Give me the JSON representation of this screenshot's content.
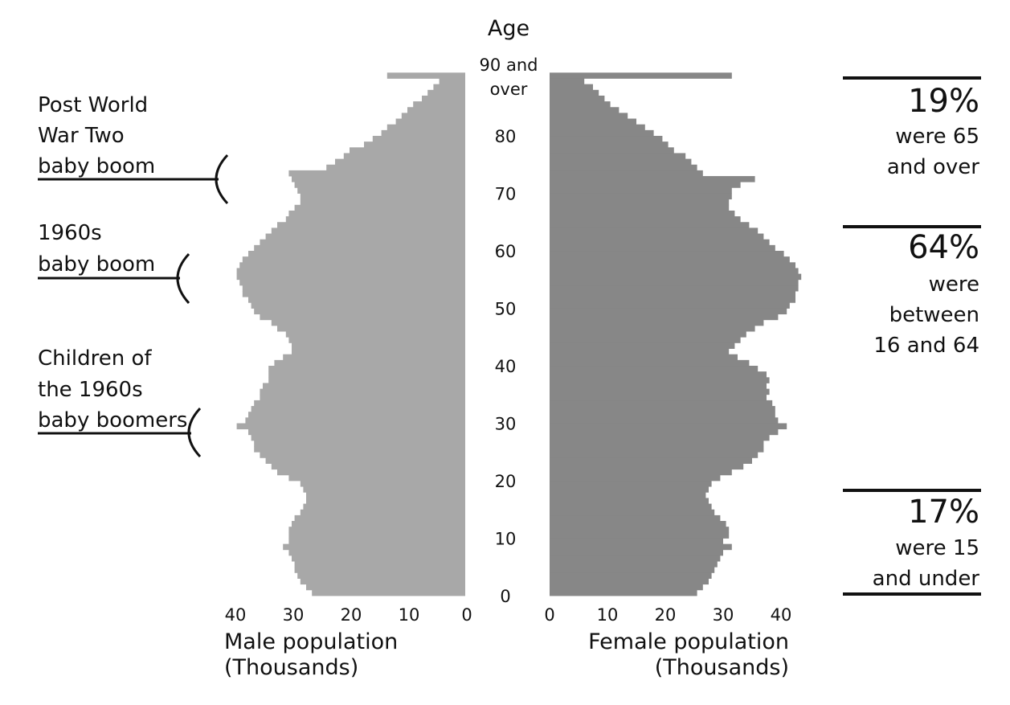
{
  "chart_data": {
    "type": "bar",
    "subtype": "population-pyramid",
    "title": "",
    "age_axis_title": "Age",
    "age_tick_labels": [
      "0",
      "10",
      "20",
      "30",
      "40",
      "50",
      "60",
      "70",
      "80"
    ],
    "top_age_label": [
      "90 and",
      "over"
    ],
    "x_tick_labels": [
      "40",
      "30",
      "20",
      "10",
      "0"
    ],
    "xlim": [
      0,
      40
    ],
    "male_label": [
      "Male population",
      "(Thousands)"
    ],
    "female_label": [
      "Female population",
      "(Thousands)"
    ],
    "ages": [
      0,
      1,
      2,
      3,
      4,
      5,
      6,
      7,
      8,
      9,
      10,
      11,
      12,
      13,
      14,
      15,
      16,
      17,
      18,
      19,
      20,
      21,
      22,
      23,
      24,
      25,
      26,
      27,
      28,
      29,
      30,
      31,
      32,
      33,
      34,
      35,
      36,
      37,
      38,
      39,
      40,
      41,
      42,
      43,
      44,
      45,
      46,
      47,
      48,
      49,
      50,
      51,
      52,
      53,
      54,
      55,
      56,
      57,
      58,
      59,
      60,
      61,
      62,
      63,
      64,
      65,
      66,
      67,
      68,
      69,
      70,
      71,
      72,
      73,
      74,
      75,
      76,
      77,
      78,
      79,
      80,
      81,
      82,
      83,
      84,
      85,
      86,
      87,
      88,
      89,
      "90 and over"
    ],
    "series": [
      {
        "name": "Male population",
        "color": "#a8a8a8",
        "values": [
          26.5,
          27.5,
          28.5,
          29.0,
          29.5,
          29.5,
          30.0,
          30.5,
          31.5,
          30.5,
          30.5,
          30.5,
          30.0,
          29.5,
          28.5,
          28.0,
          27.5,
          27.5,
          28.0,
          28.5,
          30.5,
          32.5,
          33.5,
          34.5,
          35.5,
          36.5,
          36.5,
          37.0,
          37.5,
          39.5,
          38.0,
          37.5,
          37.0,
          36.5,
          35.5,
          35.5,
          35.0,
          34.0,
          34.0,
          34.0,
          33.0,
          31.5,
          30.0,
          30.0,
          30.5,
          31.0,
          32.5,
          33.5,
          35.5,
          36.5,
          37.0,
          37.5,
          38.5,
          38.5,
          39.0,
          39.5,
          39.5,
          39.0,
          38.5,
          37.5,
          36.5,
          35.5,
          34.5,
          33.5,
          32.5,
          31.0,
          30.5,
          29.5,
          28.5,
          28.5,
          29.0,
          29.5,
          30.0,
          30.5,
          24.0,
          22.5,
          21.0,
          20.0,
          17.5,
          16.0,
          14.5,
          13.5,
          12.0,
          11.0,
          10.0,
          9.0,
          7.5,
          6.5,
          5.5,
          4.5,
          13.5
        ]
      },
      {
        "name": "Female population",
        "color": "#878787",
        "values": [
          25.5,
          26.5,
          27.5,
          28.0,
          28.5,
          29.0,
          29.5,
          30.0,
          31.5,
          30.0,
          31.0,
          31.0,
          30.5,
          29.5,
          28.5,
          28.0,
          27.5,
          27.0,
          27.5,
          28.0,
          29.5,
          31.5,
          33.5,
          35.0,
          36.0,
          37.0,
          37.0,
          38.0,
          39.5,
          41.0,
          39.5,
          39.0,
          39.0,
          38.5,
          37.5,
          38.0,
          37.5,
          38.0,
          37.5,
          36.0,
          34.5,
          32.5,
          31.0,
          32.0,
          33.0,
          34.0,
          35.5,
          37.0,
          39.5,
          41.0,
          41.5,
          42.5,
          42.5,
          43.0,
          43.0,
          43.5,
          43.0,
          42.5,
          41.5,
          40.5,
          39.0,
          38.0,
          37.0,
          36.0,
          34.5,
          33.0,
          32.0,
          31.0,
          31.0,
          31.5,
          31.5,
          33.0,
          35.5,
          26.5,
          25.5,
          24.5,
          23.5,
          21.5,
          20.5,
          19.5,
          18.0,
          16.5,
          15.0,
          13.5,
          12.0,
          10.5,
          9.5,
          8.5,
          7.5,
          6.0,
          31.5
        ]
      }
    ],
    "annotations_left": [
      {
        "lines": [
          "Post World",
          "War Two",
          "baby boom"
        ]
      },
      {
        "lines": [
          "1960s",
          "baby boom"
        ]
      },
      {
        "lines": [
          "Children of",
          "the 1960s",
          "baby boomers"
        ]
      }
    ],
    "annotations_right": [
      {
        "value": "19%",
        "lines": [
          "were 65",
          "and over"
        ]
      },
      {
        "value": "64%",
        "lines": [
          "were",
          "between",
          "16 and 64"
        ]
      },
      {
        "value": "17%",
        "lines": [
          "were 15",
          "and under"
        ]
      }
    ]
  }
}
